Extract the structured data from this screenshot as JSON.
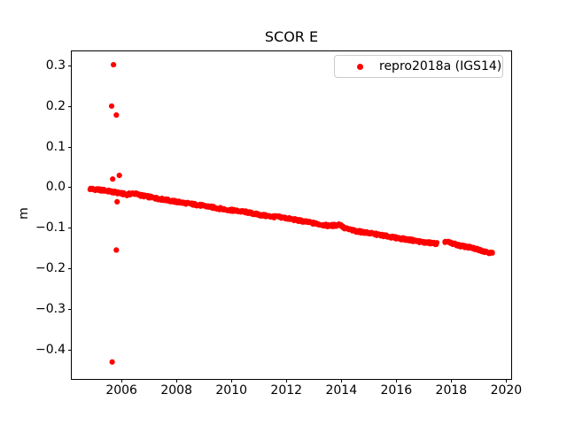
{
  "figure": {
    "title": "SCOR E",
    "ylabel": "m",
    "legend": {
      "label": "repro2018a (IGS14)"
    }
  },
  "chart_data": {
    "type": "scatter",
    "title": "SCOR E",
    "xlabel": "",
    "ylabel": "m",
    "legend_position": "upper right",
    "grid": false,
    "series": [
      {
        "name": "repro2018a (IGS14)",
        "color": "#ff0000",
        "marker": "dot",
        "marker_size_px": 6
      }
    ],
    "xlim": [
      2004.19,
      2020.18
    ],
    "ylim": [
      -0.473,
      0.335
    ],
    "xticks": [
      {
        "value": 2006,
        "label": "2006"
      },
      {
        "value": 2008,
        "label": "2008"
      },
      {
        "value": 2010,
        "label": "2010"
      },
      {
        "value": 2012,
        "label": "2012"
      },
      {
        "value": 2014,
        "label": "2014"
      },
      {
        "value": 2016,
        "label": "2016"
      },
      {
        "value": 2018,
        "label": "2018"
      },
      {
        "value": 2020,
        "label": "2020"
      }
    ],
    "yticks": [
      {
        "value": 0.3,
        "label": "0.3"
      },
      {
        "value": 0.2,
        "label": "0.2"
      },
      {
        "value": 0.1,
        "label": "0.1"
      },
      {
        "value": 0.0,
        "label": "0.0"
      },
      {
        "value": -0.1,
        "label": "−0.1"
      },
      {
        "value": -0.2,
        "label": "−0.2"
      },
      {
        "value": -0.3,
        "label": "−0.3"
      },
      {
        "value": -0.4,
        "label": "−0.4"
      }
    ],
    "trend_anchors": [
      [
        2004.85,
        -0.004
      ],
      [
        2005.1,
        -0.006
      ],
      [
        2005.4,
        -0.008
      ],
      [
        2005.7,
        -0.012
      ],
      [
        2005.95,
        -0.015
      ],
      [
        2006.2,
        -0.018
      ],
      [
        2006.45,
        -0.015
      ],
      [
        2006.7,
        -0.02
      ],
      [
        2007.0,
        -0.024
      ],
      [
        2007.5,
        -0.03
      ],
      [
        2008.0,
        -0.036
      ],
      [
        2008.5,
        -0.041
      ],
      [
        2009.0,
        -0.046
      ],
      [
        2009.5,
        -0.052
      ],
      [
        2010.0,
        -0.057
      ],
      [
        2010.5,
        -0.061
      ],
      [
        2011.0,
        -0.068
      ],
      [
        2011.4,
        -0.072
      ],
      [
        2011.8,
        -0.074
      ],
      [
        2012.2,
        -0.079
      ],
      [
        2012.6,
        -0.084
      ],
      [
        2013.0,
        -0.089
      ],
      [
        2013.5,
        -0.095
      ],
      [
        2013.85,
        -0.094
      ],
      [
        2013.95,
        -0.091
      ],
      [
        2014.1,
        -0.101
      ],
      [
        2014.5,
        -0.108
      ],
      [
        2015.0,
        -0.113
      ],
      [
        2015.5,
        -0.119
      ],
      [
        2016.0,
        -0.125
      ],
      [
        2016.5,
        -0.13
      ],
      [
        2017.0,
        -0.136
      ],
      [
        2017.48,
        -0.139
      ],
      [
        2017.77,
        -0.134
      ],
      [
        2018.0,
        -0.138
      ],
      [
        2018.3,
        -0.144
      ],
      [
        2018.7,
        -0.149
      ],
      [
        2019.0,
        -0.154
      ],
      [
        2019.25,
        -0.159
      ],
      [
        2019.5,
        -0.163
      ]
    ],
    "gaps": [
      [
        2017.48,
        2017.77
      ]
    ],
    "outliers": [
      [
        2005.71,
        0.302
      ],
      [
        2005.64,
        0.2
      ],
      [
        2005.81,
        0.178
      ],
      [
        2005.68,
        0.02
      ],
      [
        2005.92,
        0.029
      ],
      [
        2005.84,
        -0.036
      ],
      [
        2005.81,
        -0.155
      ],
      [
        2005.66,
        -0.431
      ]
    ],
    "sampling": {
      "step_years": 0.019,
      "jitter": 0.0032
    },
    "description": "Weekly GPS east-position time series: near-linear decline from ~0.00 m at 2004.9 to ~-0.16 m at 2019.5, outlier cluster near 2005.7, data gap mid-2017."
  }
}
